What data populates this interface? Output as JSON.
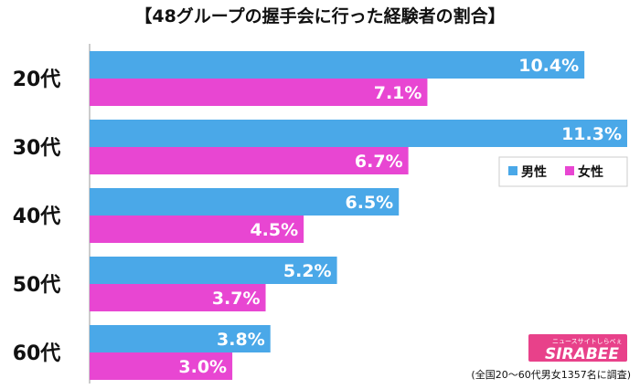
{
  "chart_data": {
    "type": "bar",
    "orientation": "horizontal",
    "title": "【48グループの握手会に行った経験者の割合】",
    "categories": [
      "20代",
      "30代",
      "40代",
      "50代",
      "60代"
    ],
    "series": [
      {
        "name": "男性",
        "color": "#4aa8e8",
        "values": [
          10.4,
          11.3,
          6.5,
          5.2,
          3.8
        ]
      },
      {
        "name": "女性",
        "color": "#e846d2",
        "values": [
          7.1,
          6.7,
          4.5,
          3.7,
          3.0
        ]
      }
    ],
    "value_labels": [
      [
        "10.4%",
        "11.3%",
        "6.5%",
        "5.2%",
        "3.8%"
      ],
      [
        "7.1%",
        "6.7%",
        "4.5%",
        "3.7%",
        "3.0%"
      ]
    ],
    "xlim": [
      0,
      11.3
    ],
    "legend": "right",
    "grid": false
  },
  "footnote": "(全国20〜60代男女1357名に調査)",
  "logo": {
    "text": "SIRABEE",
    "tagline": "ニュースサイトしらべぇ",
    "color": "#e8418a"
  }
}
